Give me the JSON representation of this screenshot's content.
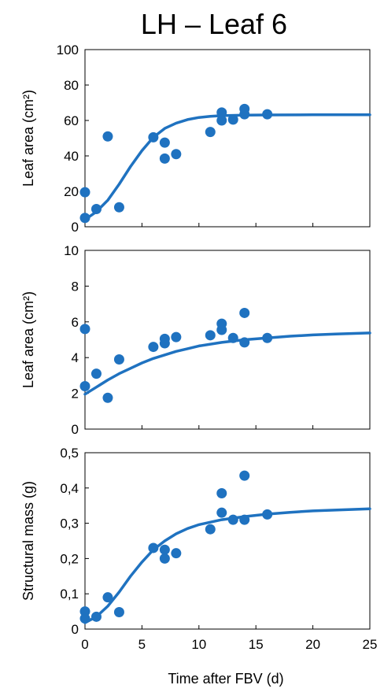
{
  "title": "LH – Leaf 6",
  "xlabel": "Time after FBV (d)",
  "colors": {
    "series": "#1f72c0",
    "axis": "#000000"
  },
  "chart_data": [
    {
      "type": "scatter",
      "ylabel": "Leaf area (cm²)",
      "xlim": [
        0,
        25
      ],
      "ylim": [
        0,
        100
      ],
      "xticks": [],
      "yticks": [
        "0",
        "20",
        "40",
        "60",
        "80",
        "100"
      ],
      "grid": false,
      "points": [
        {
          "x": 0,
          "y": 19.5
        },
        {
          "x": 0,
          "y": 5
        },
        {
          "x": 1,
          "y": 10
        },
        {
          "x": 2,
          "y": 51
        },
        {
          "x": 3,
          "y": 11
        },
        {
          "x": 6,
          "y": 50.5
        },
        {
          "x": 7,
          "y": 47.5
        },
        {
          "x": 7,
          "y": 38.5
        },
        {
          "x": 8,
          "y": 41
        },
        {
          "x": 11,
          "y": 53.5
        },
        {
          "x": 12,
          "y": 64.5
        },
        {
          "x": 12,
          "y": 60
        },
        {
          "x": 13,
          "y": 60.5
        },
        {
          "x": 14,
          "y": 66.5
        },
        {
          "x": 14,
          "y": 63.5
        },
        {
          "x": 16,
          "y": 63.5
        }
      ],
      "fit": [
        {
          "x": 0,
          "y": 4
        },
        {
          "x": 1,
          "y": 8.5
        },
        {
          "x": 2,
          "y": 15
        },
        {
          "x": 3,
          "y": 24
        },
        {
          "x": 4,
          "y": 34
        },
        {
          "x": 5,
          "y": 43
        },
        {
          "x": 6,
          "y": 50.5
        },
        {
          "x": 7,
          "y": 55.5
        },
        {
          "x": 8,
          "y": 58.5
        },
        {
          "x": 9,
          "y": 60.5
        },
        {
          "x": 10,
          "y": 61.7
        },
        {
          "x": 11,
          "y": 62.3
        },
        {
          "x": 12,
          "y": 62.7
        },
        {
          "x": 14,
          "y": 63
        },
        {
          "x": 16,
          "y": 63.1
        },
        {
          "x": 20,
          "y": 63.2
        },
        {
          "x": 25,
          "y": 63.2
        }
      ]
    },
    {
      "type": "scatter",
      "ylabel": "Leaf area (cm²)",
      "xlim": [
        0,
        25
      ],
      "ylim": [
        0,
        10
      ],
      "xticks": [],
      "yticks": [
        "0",
        "2",
        "4",
        "6",
        "8",
        "10"
      ],
      "grid": false,
      "points": [
        {
          "x": 0,
          "y": 5.6
        },
        {
          "x": 0,
          "y": 2.4
        },
        {
          "x": 1,
          "y": 3.1
        },
        {
          "x": 2,
          "y": 1.75
        },
        {
          "x": 3,
          "y": 3.9
        },
        {
          "x": 6,
          "y": 4.6
        },
        {
          "x": 7,
          "y": 5.05
        },
        {
          "x": 7,
          "y": 4.8
        },
        {
          "x": 8,
          "y": 5.15
        },
        {
          "x": 11,
          "y": 5.25
        },
        {
          "x": 12,
          "y": 5.9
        },
        {
          "x": 12,
          "y": 5.55
        },
        {
          "x": 13,
          "y": 5.1
        },
        {
          "x": 14,
          "y": 6.5
        },
        {
          "x": 14,
          "y": 4.85
        },
        {
          "x": 16,
          "y": 5.1
        }
      ],
      "fit": [
        {
          "x": 0,
          "y": 1.95
        },
        {
          "x": 1,
          "y": 2.35
        },
        {
          "x": 2,
          "y": 2.75
        },
        {
          "x": 3,
          "y": 3.1
        },
        {
          "x": 4,
          "y": 3.4
        },
        {
          "x": 5,
          "y": 3.7
        },
        {
          "x": 6,
          "y": 3.95
        },
        {
          "x": 7,
          "y": 4.15
        },
        {
          "x": 8,
          "y": 4.35
        },
        {
          "x": 9,
          "y": 4.5
        },
        {
          "x": 10,
          "y": 4.65
        },
        {
          "x": 12,
          "y": 4.85
        },
        {
          "x": 14,
          "y": 5.0
        },
        {
          "x": 16,
          "y": 5.1
        },
        {
          "x": 18,
          "y": 5.2
        },
        {
          "x": 20,
          "y": 5.27
        },
        {
          "x": 22,
          "y": 5.32
        },
        {
          "x": 25,
          "y": 5.38
        }
      ]
    },
    {
      "type": "scatter",
      "ylabel": "Structural mass (g)",
      "xlim": [
        0,
        25
      ],
      "ylim": [
        0,
        0.5
      ],
      "xticks": [
        "0",
        "5",
        "10",
        "15",
        "20",
        "25"
      ],
      "yticks": [
        "0",
        "0,1",
        "0,2",
        "0,3",
        "0,4",
        "0,5"
      ],
      "grid": false,
      "points": [
        {
          "x": 0,
          "y": 0.05
        },
        {
          "x": 0,
          "y": 0.03
        },
        {
          "x": 1,
          "y": 0.035
        },
        {
          "x": 2,
          "y": 0.09
        },
        {
          "x": 3,
          "y": 0.048
        },
        {
          "x": 6,
          "y": 0.23
        },
        {
          "x": 7,
          "y": 0.225
        },
        {
          "x": 7,
          "y": 0.2
        },
        {
          "x": 8,
          "y": 0.215
        },
        {
          "x": 11,
          "y": 0.283
        },
        {
          "x": 12,
          "y": 0.385
        },
        {
          "x": 12,
          "y": 0.33
        },
        {
          "x": 13,
          "y": 0.31
        },
        {
          "x": 14,
          "y": 0.435
        },
        {
          "x": 14,
          "y": 0.31
        },
        {
          "x": 16,
          "y": 0.325
        }
      ],
      "fit": [
        {
          "x": 0,
          "y": 0.018
        },
        {
          "x": 1,
          "y": 0.035
        },
        {
          "x": 2,
          "y": 0.065
        },
        {
          "x": 3,
          "y": 0.105
        },
        {
          "x": 4,
          "y": 0.15
        },
        {
          "x": 5,
          "y": 0.19
        },
        {
          "x": 6,
          "y": 0.225
        },
        {
          "x": 7,
          "y": 0.25
        },
        {
          "x": 8,
          "y": 0.27
        },
        {
          "x": 9,
          "y": 0.285
        },
        {
          "x": 10,
          "y": 0.296
        },
        {
          "x": 12,
          "y": 0.31
        },
        {
          "x": 14,
          "y": 0.319
        },
        {
          "x": 16,
          "y": 0.326
        },
        {
          "x": 18,
          "y": 0.331
        },
        {
          "x": 20,
          "y": 0.335
        },
        {
          "x": 25,
          "y": 0.341
        }
      ]
    }
  ]
}
